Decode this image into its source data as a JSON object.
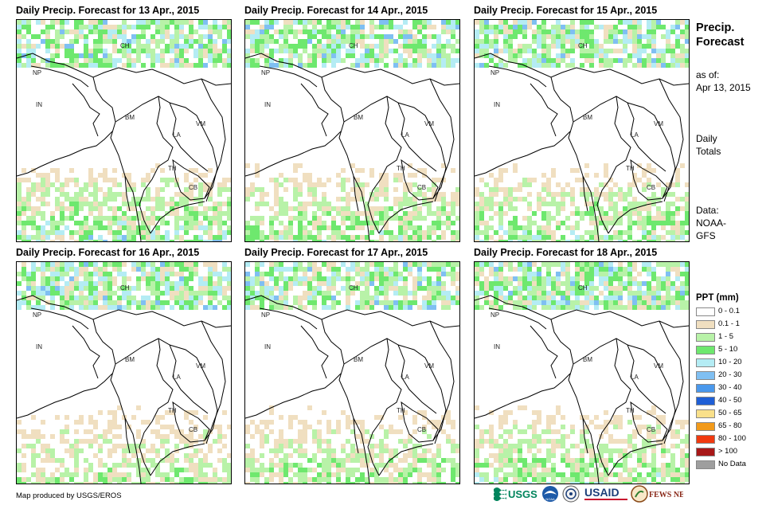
{
  "panels": [
    {
      "title": "Daily Precip. Forecast for 13 Apr., 2015",
      "labels": [
        "CH",
        "NP",
        "IN",
        "BM",
        "LA",
        "VM",
        "TH",
        "CB"
      ],
      "intensity": 0.65,
      "seed": 13
    },
    {
      "title": "Daily Precip. Forecast for 14 Apr., 2015",
      "labels": [
        "CH",
        "NP",
        "IN",
        "BM",
        "LA",
        "VM",
        "TH",
        "CB"
      ],
      "intensity": 0.55,
      "seed": 14
    },
    {
      "title": "Daily Precip. Forecast for 15 Apr., 2015",
      "labels": [
        "CH",
        "NP",
        "IN",
        "BM",
        "LA",
        "VM",
        "TH",
        "CB"
      ],
      "intensity": 0.6,
      "seed": 15
    },
    {
      "title": "Daily Precip. Forecast for 16 Apr., 2015",
      "labels": [
        "CH",
        "NP",
        "IN",
        "BM",
        "LA",
        "VM",
        "TH",
        "CB"
      ],
      "intensity": 0.4,
      "seed": 16
    },
    {
      "title": "Daily Precip. Forecast for 17 Apr., 2015",
      "labels": [
        "CH",
        "NP",
        "IN",
        "BM",
        "LA",
        "VM",
        "TH",
        "CB"
      ],
      "intensity": 0.45,
      "seed": 17
    },
    {
      "title": "Daily Precip. Forecast for 18 Apr., 2015",
      "labels": [
        "CH",
        "NP",
        "IN",
        "BM",
        "LA",
        "VM",
        "TH",
        "CB"
      ],
      "intensity": 0.55,
      "seed": 18
    }
  ],
  "sidebar": {
    "title_line1": "Precip.",
    "title_line2": "Forecast",
    "asof_line1": "as of:",
    "asof_line2": "Apr 13, 2015",
    "totals_line1": "Daily",
    "totals_line2": "Totals",
    "data_line1": "Data:",
    "data_line2": "NOAA-",
    "data_line3": "GFS"
  },
  "legend": {
    "title": "PPT (mm)",
    "items": [
      {
        "label": "0 - 0.1",
        "color": "#ffffff"
      },
      {
        "label": "0.1 - 1",
        "color": "#f0dfc0"
      },
      {
        "label": "1 - 5",
        "color": "#b8f2a8"
      },
      {
        "label": "5 - 10",
        "color": "#6ee86e"
      },
      {
        "label": "10 - 20",
        "color": "#b4ecf4"
      },
      {
        "label": "20 - 30",
        "color": "#7fbff2"
      },
      {
        "label": "30 - 40",
        "color": "#4a98ec"
      },
      {
        "label": "40 - 50",
        "color": "#1f5fd6"
      },
      {
        "label": "50 - 65",
        "color": "#f9e08a"
      },
      {
        "label": "65 - 80",
        "color": "#f29a1a"
      },
      {
        "label": "80 - 100",
        "color": "#f03a10"
      },
      {
        "label": "> 100",
        "color": "#a81818"
      },
      {
        "label": "No Data",
        "color": "#9e9e9e"
      }
    ]
  },
  "credit": "Map produced by USGS/EROS",
  "logos": [
    {
      "name": "USGS",
      "text": "USGS"
    },
    {
      "name": "NOAA",
      "text": "NOAA"
    },
    {
      "name": "USAID",
      "text": "USAID"
    },
    {
      "name": "FEWS NET",
      "text": "FEWS NET"
    }
  ]
}
